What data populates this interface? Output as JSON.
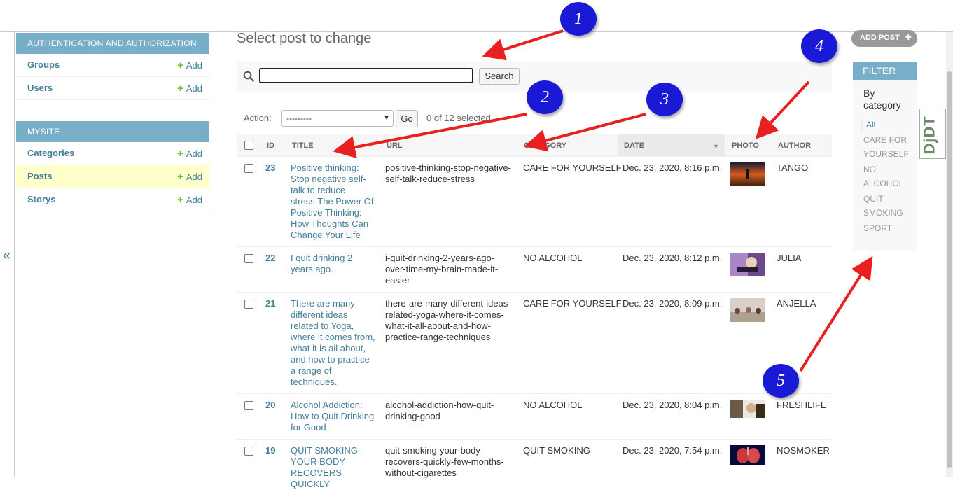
{
  "sidebar": {
    "collapse_label": "«",
    "modules": [
      {
        "caption": "AUTHENTICATION AND AUTHORIZATION",
        "models": [
          {
            "name": "Groups",
            "add": "Add"
          },
          {
            "name": "Users",
            "add": "Add"
          }
        ]
      },
      {
        "caption": "MYSITE",
        "models": [
          {
            "name": "Categories",
            "add": "Add"
          },
          {
            "name": "Posts",
            "add": "Add"
          },
          {
            "name": "Storys",
            "add": "Add"
          }
        ]
      }
    ]
  },
  "page_title": "Select post to change",
  "add_button": "ADD POST",
  "search": {
    "value": "",
    "button": "Search"
  },
  "actions": {
    "label": "Action:",
    "select_value": "---------",
    "go": "Go",
    "selected": "0 of 12 selected"
  },
  "table": {
    "headers": [
      "ID",
      "TITLE",
      "URL",
      "CATEGORY",
      "DATE",
      "PHOTO",
      "AUTHOR"
    ],
    "rows": [
      {
        "id": "23",
        "title": "Positive thinking: Stop negative self-talk to reduce stress.The Power Of Positive Thinking: How Thoughts Can Change Your Life",
        "url": "positive-thinking-stop-negative-self-talk-reduce-stress",
        "category": "CARE FOR YOURSELF",
        "date": "Dec. 23, 2020, 8:16 p.m.",
        "author": "TANGO"
      },
      {
        "id": "22",
        "title": "I quit drinking 2 years ago.",
        "url": "i-quit-drinking-2-years-ago-over-time-my-brain-made-it-easier",
        "category": "NO ALCOHOL",
        "date": "Dec. 23, 2020, 8:12 p.m.",
        "author": "JULIA"
      },
      {
        "id": "21",
        "title": "There are many different ideas related to Yoga, where it comes from, what it is all about, and how to practice a range of techniques.",
        "url": "there-are-many-different-ideas-related-yoga-where-it-comes-what-it-all-about-and-how-practice-range-techniques",
        "category": "CARE FOR YOURSELF",
        "date": "Dec. 23, 2020, 8:09 p.m.",
        "author": "ANJELLA"
      },
      {
        "id": "20",
        "title": "Alcohol Addiction: How to Quit Drinking for Good",
        "url": "alcohol-addiction-how-quit-drinking-good",
        "category": "NO ALCOHOL",
        "date": "Dec. 23, 2020, 8:04 p.m.",
        "author": "FRESHLIFE"
      },
      {
        "id": "19",
        "title": "QUIT SMOKING - YOUR BODY RECOVERS QUICKLY",
        "url": "quit-smoking-your-body-recovers-quickly-few-months-without-cigarettes",
        "category": "QUIT SMOKING",
        "date": "Dec. 23, 2020, 7:54 p.m.",
        "author": "NOSMOKER"
      }
    ]
  },
  "filter": {
    "title": "FILTER",
    "heading": "By category",
    "items": [
      "All",
      "CARE FOR YOURSELF",
      "NO ALCOHOL",
      "QUIT SMOKING",
      "SPORT"
    ]
  },
  "djdt_label": "DjDT",
  "annotations": [
    "1",
    "2",
    "3",
    "4",
    "5"
  ],
  "colors": {
    "module_header": "#79aec8",
    "link": "#447e9b",
    "add_green": "#70bf2b",
    "annotation": "#1a1ad6",
    "arrow": "#e82020",
    "active_row": "#ffffcc"
  },
  "icons": [
    "search-icon",
    "plus-icon",
    "sort-desc-icon",
    "chevron-down-icon"
  ]
}
